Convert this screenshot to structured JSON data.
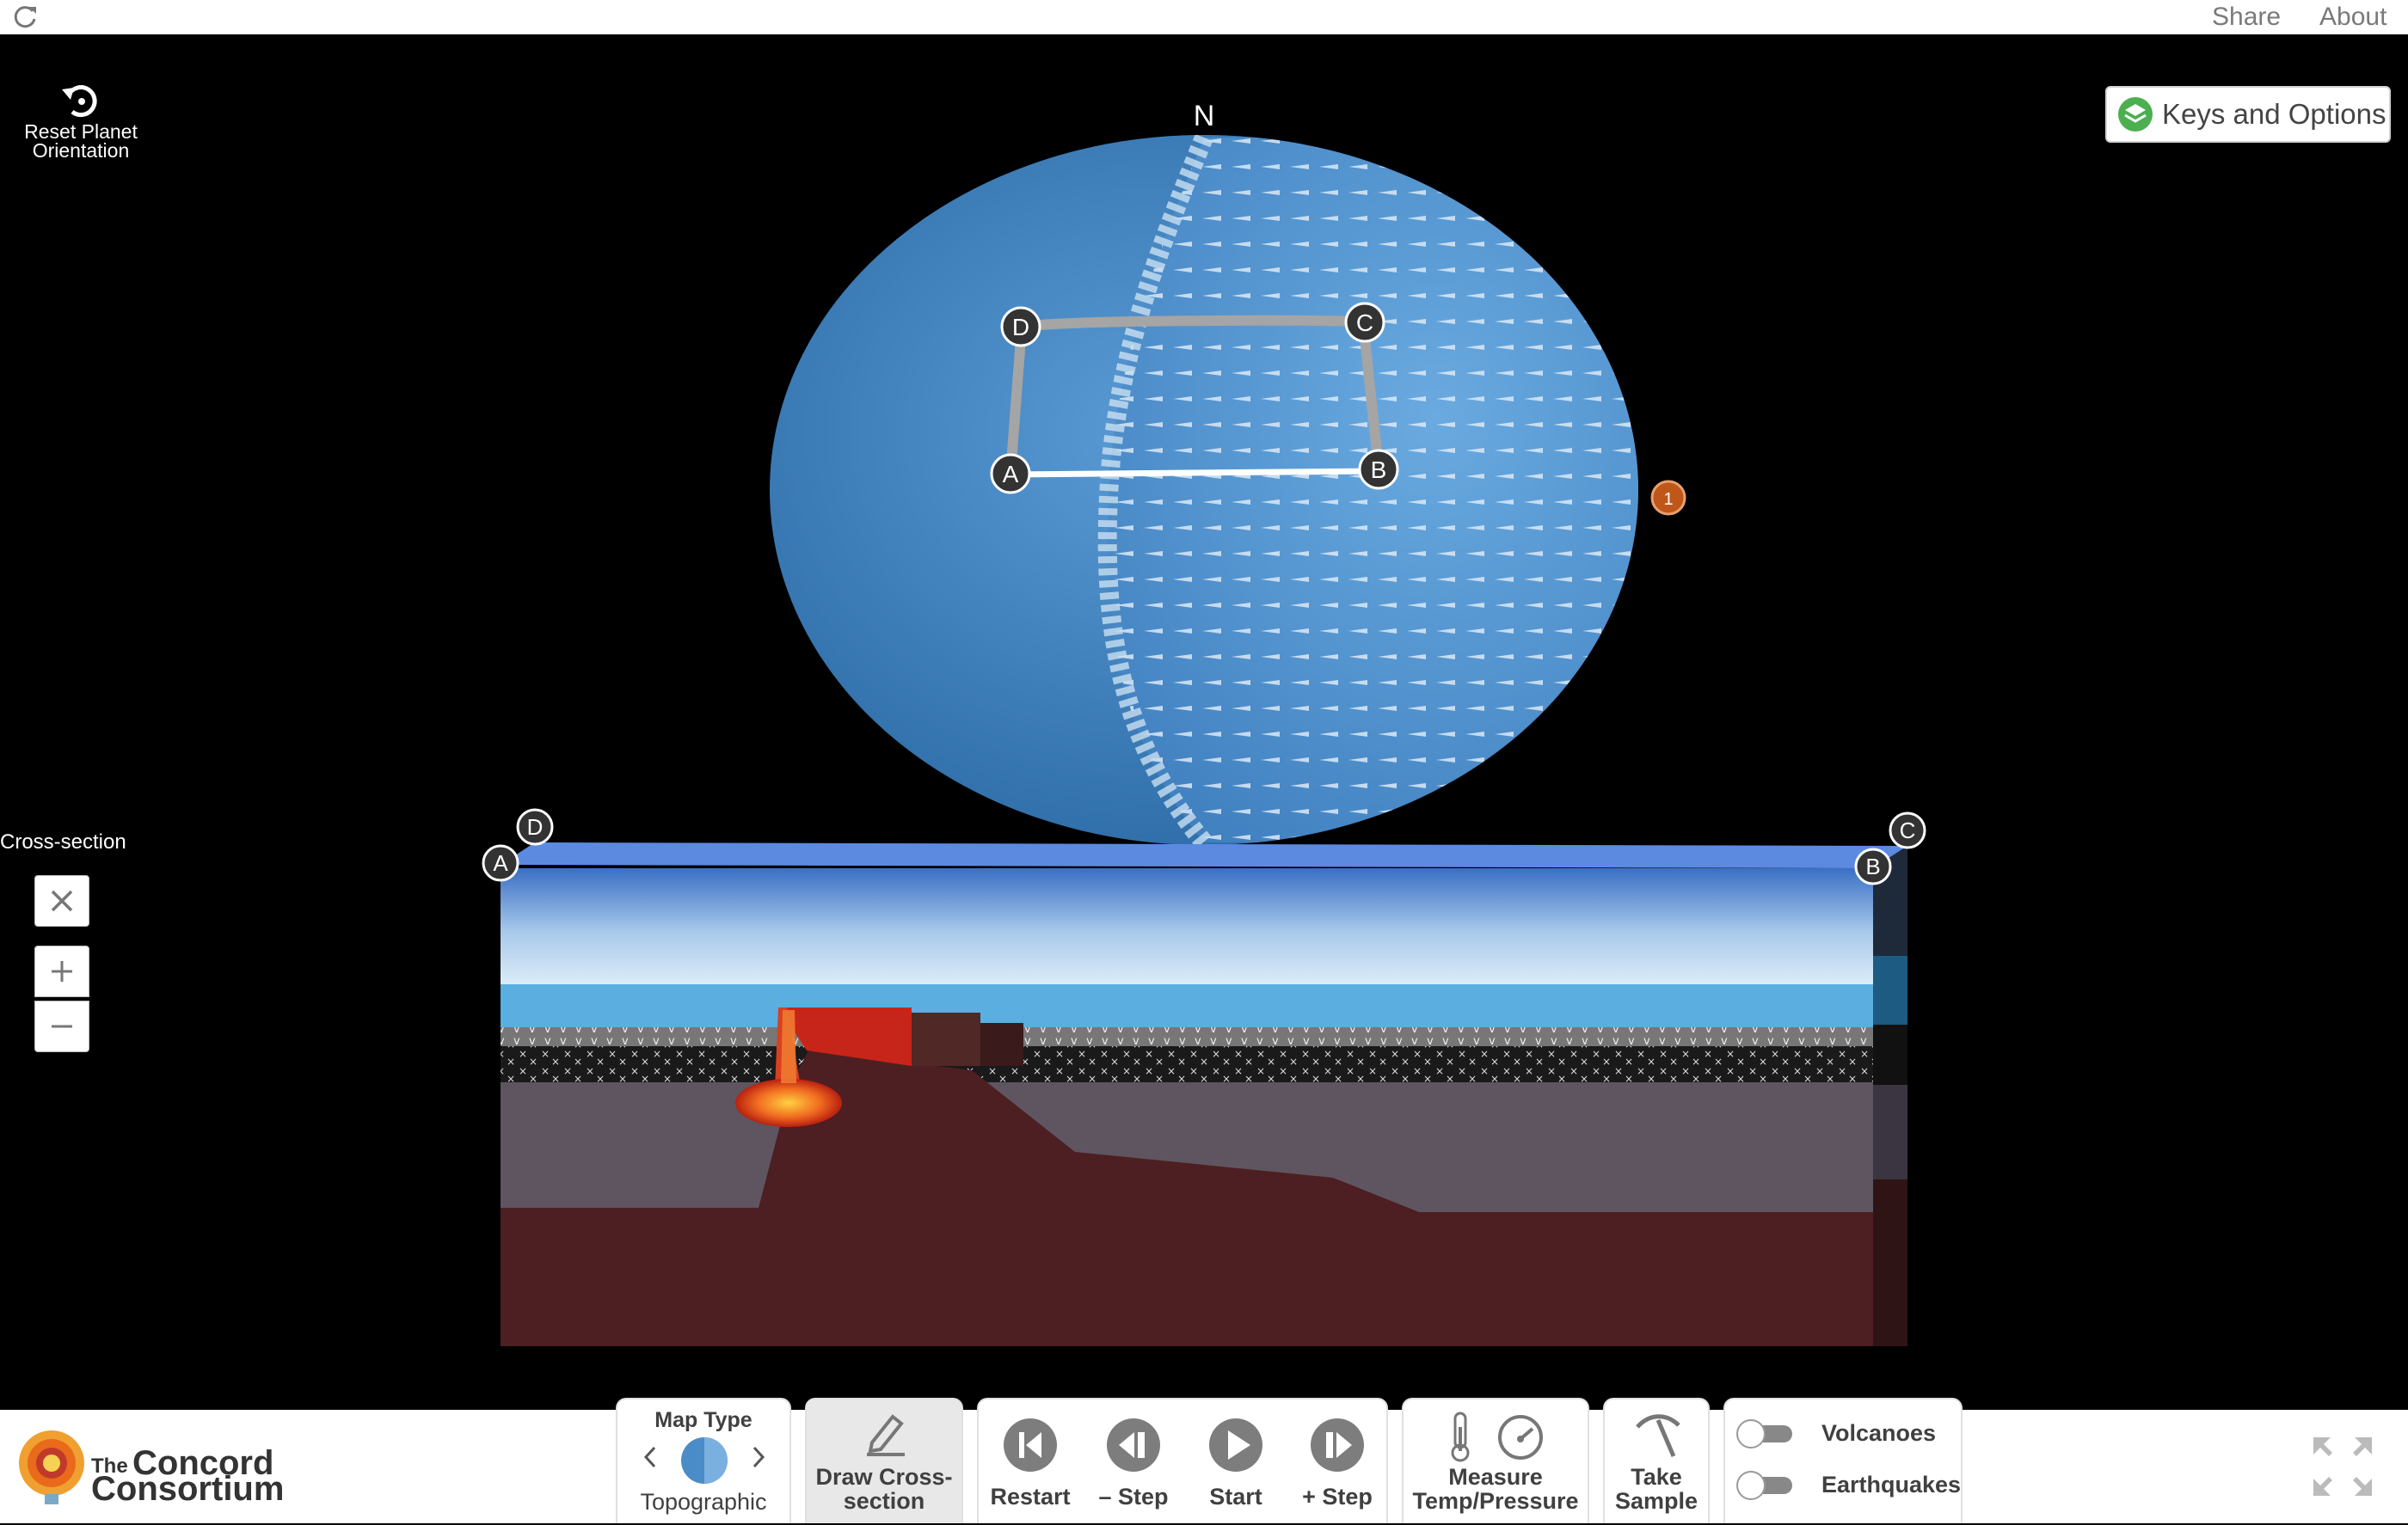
{
  "topbar": {
    "share": "Share",
    "about": "About"
  },
  "reset": {
    "label": "Reset Planet Orientation"
  },
  "keys": {
    "label": "Keys and Options"
  },
  "globe": {
    "north": "N",
    "markers": {
      "A": "A",
      "B": "B",
      "C": "C",
      "D": "D"
    },
    "plate_badge": "1",
    "ocean_color": "#4a8cc8",
    "land_color": "#5c9fd8"
  },
  "cross_section": {
    "title": "Cross-section",
    "corners": {
      "A": "A",
      "B": "B",
      "C": "C",
      "D": "D"
    },
    "water_color": "#5aaee0",
    "mantle_color": "#4d1f22",
    "lithosphere_color": "#5e5560",
    "magma_color": "#e04a20"
  },
  "toolbar": {
    "map_type_label": "Map Type",
    "map_type_value": "Topographic",
    "draw_label": "Draw Cross-section",
    "restart_label": "Restart",
    "step_back_label": "– Step",
    "start_label": "Start",
    "step_fwd_label": "+ Step",
    "measure_label": "Measure Temp/Pressure",
    "sample_label": "Take Sample",
    "volcanoes_label": "Volcanoes",
    "earthquakes_label": "Earthquakes"
  },
  "brand": {
    "the": "The",
    "concord": "Concord",
    "consortium": "Consortium"
  },
  "colors": {
    "accent": "#4caf50",
    "button_gray": "#7d7d7d",
    "active_panel": "#e8e8e8"
  }
}
